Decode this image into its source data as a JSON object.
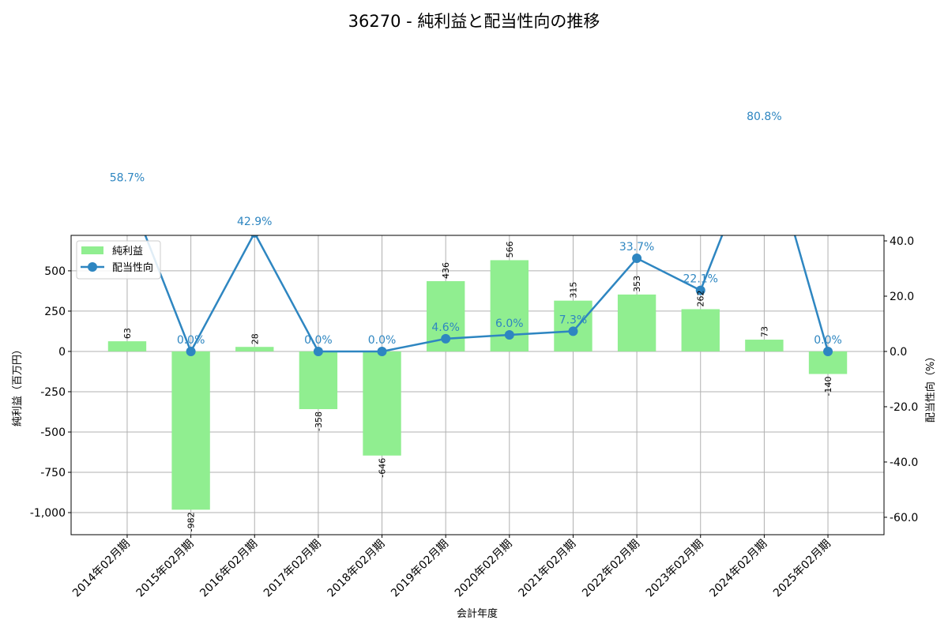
{
  "chart_data": {
    "type": "bar+line",
    "title": "36270 - 純利益と配当性向の推移",
    "xlabel": "会計年度",
    "ylabel_left": "純利益（百万円）",
    "ylabel_right": "配当性向（%）",
    "categories": [
      "2014年02月期",
      "2015年02月期",
      "2016年02月期",
      "2017年02月期",
      "2018年02月期",
      "2019年02月期",
      "2020年02月期",
      "2021年02月期",
      "2022年02月期",
      "2023年02月期",
      "2024年02月期",
      "2025年02月期"
    ],
    "series": [
      {
        "name": "純利益",
        "type": "bar",
        "axis": "left",
        "color": "#90ee90",
        "values": [
          63,
          -982,
          28,
          -358,
          -646,
          436,
          566,
          315,
          353,
          262,
          73,
          -140
        ],
        "labels": [
          "63",
          "-982",
          "28",
          "-358",
          "-646",
          "436",
          "566",
          "315",
          "353",
          "262",
          "73",
          "-140"
        ]
      },
      {
        "name": "配当性向",
        "type": "line",
        "axis": "right",
        "color": "#2e86c1",
        "values": [
          58.7,
          0.0,
          42.9,
          0.0,
          0.0,
          4.6,
          6.0,
          7.3,
          33.7,
          22.1,
          80.8,
          0.0
        ],
        "labels": [
          "58.7%",
          "0.0%",
          "42.9%",
          "0.0%",
          "0.0%",
          "4.6%",
          "6.0%",
          "7.3%",
          "33.7%",
          "22.1%",
          "80.8%",
          "0.0%"
        ]
      }
    ],
    "ylim_left": [
      -1137,
      720
    ],
    "ylim_right": [
      -66.3,
      42.0
    ],
    "yticks_left": [
      {
        "v": 500,
        "label": "500"
      },
      {
        "v": 250,
        "label": "250"
      },
      {
        "v": 0,
        "label": "0"
      },
      {
        "v": -250,
        "label": "-250"
      },
      {
        "v": -500,
        "label": "-500"
      },
      {
        "v": -750,
        "label": "-750"
      },
      {
        "v": -1000,
        "label": "-1,000"
      }
    ],
    "yticks_right": [
      {
        "v": 40,
        "label": "40.0"
      },
      {
        "v": 20,
        "label": "20.0"
      },
      {
        "v": 0,
        "label": "0.0"
      },
      {
        "v": -20,
        "label": "-20.0"
      },
      {
        "v": -40,
        "label": "-40.0"
      },
      {
        "v": -60,
        "label": "-60.0"
      }
    ],
    "grid": true,
    "legend": "top-left"
  }
}
